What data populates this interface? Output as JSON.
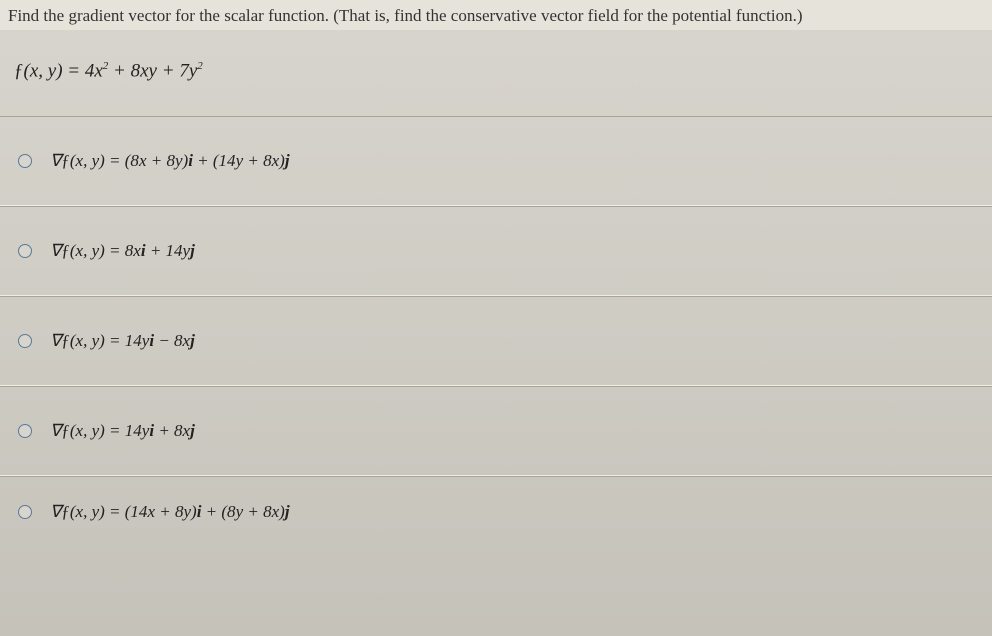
{
  "background_gradient": [
    "#d8d5ce",
    "#cfccc4",
    "#c5c2ba"
  ],
  "text_color": "#2a2a2a",
  "border_color": "#a8a49a",
  "radio_border_color": "#5a7a94",
  "font_family": "Georgia, 'Times New Roman', serif",
  "prompt_fontsize": 17,
  "equation_fontsize": 19,
  "choice_fontsize": 17,
  "question": {
    "prompt": "Find the gradient vector for the scalar function. (That is, find the conservative vector field for the potential function.)",
    "equation_html": "<span class='upright'>ƒ</span>(<i>x</i>, <i>y</i>) = 4<i>x</i><sup>2</sup> + 8<i>xy</i> + 7<i>y</i><sup>2</sup>"
  },
  "choices": [
    {
      "html": "∇<span class='upright'>ƒ</span>(<i>x</i>, <i>y</i>) = (8<i>x</i> + 8<i>y</i>)<b>i</b> + (14<i>y</i> + 8<i>x</i>)<b>j</b>"
    },
    {
      "html": "∇<span class='upright'>ƒ</span>(<i>x</i>, <i>y</i>) = 8<i>x</i><b>i</b> + 14<i>y</i><b>j</b>"
    },
    {
      "html": "∇<span class='upright'>ƒ</span>(<i>x</i>, <i>y</i>) = 14<i>y</i><b>i</b> − 8<i>x</i><b>j</b>"
    },
    {
      "html": "∇<span class='upright'>ƒ</span>(<i>x</i>, <i>y</i>) = 14<i>y</i><b>i</b> + 8<i>x</i><b>j</b>"
    },
    {
      "html": "∇<span class='upright'>ƒ</span>(<i>x</i>, <i>y</i>) = (14<i>x</i> + 8<i>y</i>)<b>i</b> + (8<i>y</i> + 8<i>x</i>)<b>j</b>"
    }
  ]
}
